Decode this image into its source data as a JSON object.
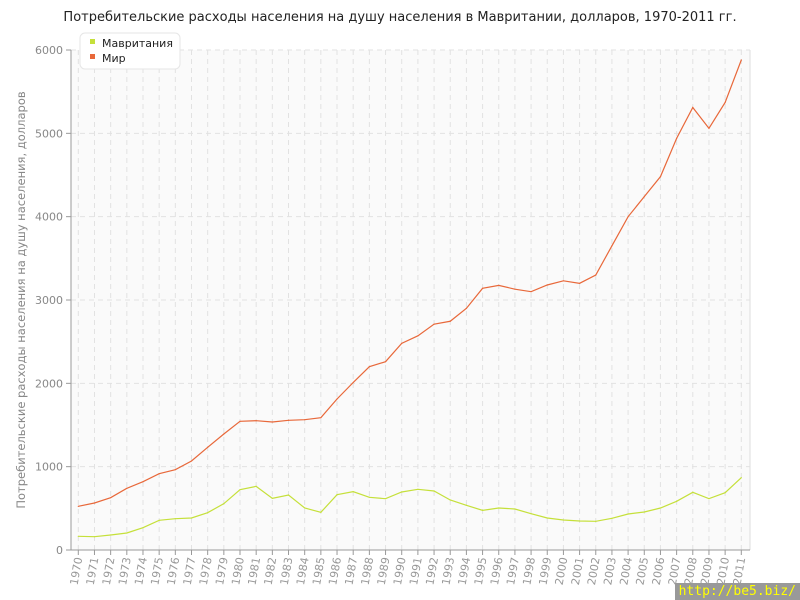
{
  "chart_data": {
    "type": "line",
    "title": "Потребительские расходы населения на душу населения в Мавритании, долларов, 1970-2011 гг.",
    "ylabel": "Потребительские расходы населения на душу населения, долларов",
    "xlabel": "",
    "ylim": [
      0,
      6000
    ],
    "yticks": [
      "0",
      "1000",
      "2000",
      "3000",
      "4000",
      "5000",
      "6000"
    ],
    "grid": true,
    "legend": "top-left",
    "categories": [
      "1970",
      "1971",
      "1972",
      "1973",
      "1974",
      "1975",
      "1976",
      "1977",
      "1978",
      "1979",
      "1980",
      "1981",
      "1982",
      "1983",
      "1984",
      "1985",
      "1986",
      "1987",
      "1988",
      "1989",
      "1990",
      "1991",
      "1992",
      "1993",
      "1994",
      "1995",
      "1996",
      "1997",
      "1998",
      "1999",
      "2000",
      "2001",
      "2002",
      "2003",
      "2004",
      "2005",
      "2006",
      "2007",
      "2008",
      "2009",
      "2010",
      "2011"
    ],
    "series": [
      {
        "name": "Мавритания",
        "color": "#c5e03a",
        "values": [
          164,
          160,
          180,
          204,
          268,
          356,
          376,
          384,
          448,
          556,
          724,
          764,
          620,
          660,
          504,
          452,
          664,
          700,
          632,
          616,
          696,
          728,
          708,
          600,
          536,
          476,
          504,
          492,
          436,
          384,
          360,
          348,
          344,
          380,
          432,
          456,
          504,
          584,
          692,
          616,
          688,
          868
        ]
      },
      {
        "name": "Мир",
        "color": "#e8683a",
        "values": [
          524,
          564,
          628,
          740,
          820,
          916,
          964,
          1068,
          1232,
          1392,
          1544,
          1552,
          1536,
          1556,
          1564,
          1588,
          1812,
          2010,
          2200,
          2260,
          2480,
          2570,
          2710,
          2745,
          2900,
          3140,
          3175,
          3130,
          3100,
          3180,
          3230,
          3200,
          3300,
          3650,
          4000,
          4240,
          4480,
          4940,
          5310,
          5060,
          5370,
          5880
        ]
      }
    ]
  },
  "watermark": "http://be5.biz/"
}
